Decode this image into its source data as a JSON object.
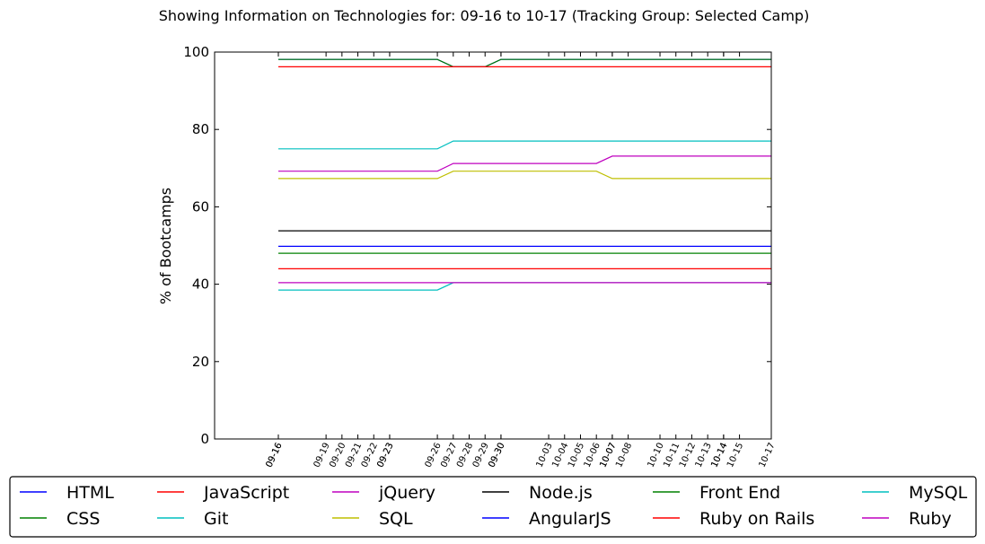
{
  "chart_data": {
    "type": "line",
    "title": "Showing Information on Technologies for: 09-16 to 10-17 (Tracking Group: Selected Camp)",
    "xlabel": "",
    "ylabel": "% of Bootcamps",
    "ylim": [
      0,
      100
    ],
    "yticks": [
      0,
      20,
      40,
      60,
      80,
      100
    ],
    "grid": false,
    "legend_position": "bottom",
    "x_range": [
      "09-16",
      "10-17"
    ],
    "x": [
      "09-16",
      "09-19",
      "09-20",
      "09-21",
      "09-22",
      "09-23",
      "09-26",
      "09-27",
      "09-28",
      "09-29",
      "09-30",
      "10-03",
      "10-04",
      "10-05",
      "10-06",
      "10-07",
      "10-08",
      "10-10",
      "10-11",
      "10-12",
      "10-13",
      "10-14",
      "10-15",
      "10-17"
    ],
    "x_tick_labels": [
      "09-16",
      "09-16",
      "09-19",
      "09-20",
      "09-21",
      "09-22",
      "09-23",
      "09-23",
      "09-26",
      "09-27",
      "09-28",
      "09-29",
      "09-30",
      "09-30",
      "10-03",
      "10-04",
      "10-05",
      "10-06",
      "10-07",
      "10-07",
      "10-08",
      "10-10",
      "10-11",
      "10-12",
      "10-13",
      "10-14",
      "10-14",
      "10-15",
      "10-17"
    ],
    "series": [
      {
        "name": "HTML",
        "color": "#0000ff",
        "values": [
          49.8,
          49.8,
          49.8,
          49.8,
          49.8,
          49.8,
          49.8,
          49.8,
          49.8,
          49.8,
          49.8,
          49.8,
          49.8,
          49.8,
          49.8,
          49.8,
          49.8,
          49.8,
          49.8,
          49.8,
          49.8,
          49.8,
          49.8,
          49.8
        ]
      },
      {
        "name": "CSS",
        "color": "#008000",
        "values": [
          48,
          48,
          48,
          48,
          48,
          48,
          48,
          48,
          48,
          48,
          48,
          48,
          48,
          48,
          48,
          48,
          48,
          48,
          48,
          48,
          48,
          48,
          48,
          48
        ]
      },
      {
        "name": "JavaScript",
        "color": "#ff0000",
        "values": [
          44,
          44,
          44,
          44,
          44,
          44,
          44,
          44,
          44,
          44,
          44,
          44,
          44,
          44,
          44,
          44,
          44,
          44,
          44,
          44,
          44,
          44,
          44,
          44
        ]
      },
      {
        "name": "Git",
        "color": "#00bfbf",
        "values": [
          75,
          75,
          75,
          75,
          75,
          75,
          75,
          77,
          77,
          77,
          77,
          77,
          77,
          77,
          77,
          77,
          77,
          77,
          77,
          77,
          77,
          77,
          77,
          77
        ]
      },
      {
        "name": "jQuery",
        "color": "#bf00bf",
        "values": [
          69.2,
          69.2,
          69.2,
          69.2,
          69.2,
          69.2,
          69.2,
          71.2,
          71.2,
          71.2,
          71.2,
          71.2,
          71.2,
          71.2,
          71.2,
          73.1,
          73.1,
          73.1,
          73.1,
          73.1,
          73.1,
          73.1,
          73.1,
          73.1
        ]
      },
      {
        "name": "SQL",
        "color": "#bfbf00",
        "values": [
          67.3,
          67.3,
          67.3,
          67.3,
          67.3,
          67.3,
          67.3,
          69.2,
          69.2,
          69.2,
          69.2,
          69.2,
          69.2,
          69.2,
          69.2,
          67.3,
          67.3,
          67.3,
          67.3,
          67.3,
          67.3,
          67.3,
          67.3,
          67.3
        ]
      },
      {
        "name": "Node.js",
        "color": "#000000",
        "values": [
          53.8,
          53.8,
          53.8,
          53.8,
          53.8,
          53.8,
          53.8,
          53.8,
          53.8,
          53.8,
          53.8,
          53.8,
          53.8,
          53.8,
          53.8,
          53.8,
          53.8,
          53.8,
          53.8,
          53.8,
          53.8,
          53.8,
          53.8,
          53.8
        ]
      },
      {
        "name": "AngularJS",
        "color": "#0000ff",
        "values": [
          98.1,
          98.1,
          98.1,
          98.1,
          98.1,
          98.1,
          98.1,
          96.2,
          96.2,
          96.2,
          98.1,
          98.1,
          98.1,
          98.1,
          98.1,
          98.1,
          98.1,
          98.1,
          98.1,
          98.1,
          98.1,
          98.1,
          98.1,
          98.1
        ]
      },
      {
        "name": "Front End",
        "color": "#008000",
        "values": [
          98.1,
          98.1,
          98.1,
          98.1,
          98.1,
          98.1,
          98.1,
          96.2,
          96.2,
          96.2,
          98.1,
          98.1,
          98.1,
          98.1,
          98.1,
          98.1,
          98.1,
          98.1,
          98.1,
          98.1,
          98.1,
          98.1,
          98.1,
          98.1
        ]
      },
      {
        "name": "Ruby on Rails",
        "color": "#ff0000",
        "values": [
          96.2,
          96.2,
          96.2,
          96.2,
          96.2,
          96.2,
          96.2,
          96.2,
          96.2,
          96.2,
          96.2,
          96.2,
          96.2,
          96.2,
          96.2,
          96.2,
          96.2,
          96.2,
          96.2,
          96.2,
          96.2,
          96.2,
          96.2,
          96.2
        ]
      },
      {
        "name": "MySQL",
        "color": "#00bfbf",
        "values": [
          38.5,
          38.5,
          38.5,
          38.5,
          38.5,
          38.5,
          38.5,
          40.4,
          40.4,
          40.4,
          40.4,
          40.4,
          40.4,
          40.4,
          40.4,
          40.4,
          40.4,
          40.4,
          40.4,
          40.4,
          40.4,
          40.4,
          40.4,
          40.4
        ]
      },
      {
        "name": "Ruby",
        "color": "#bf00bf",
        "values": [
          40.4,
          40.4,
          40.4,
          40.4,
          40.4,
          40.4,
          40.4,
          40.4,
          40.4,
          40.4,
          40.4,
          40.4,
          40.4,
          40.4,
          40.4,
          40.4,
          40.4,
          40.4,
          40.4,
          40.4,
          40.4,
          40.4,
          40.4,
          40.4
        ]
      }
    ]
  }
}
